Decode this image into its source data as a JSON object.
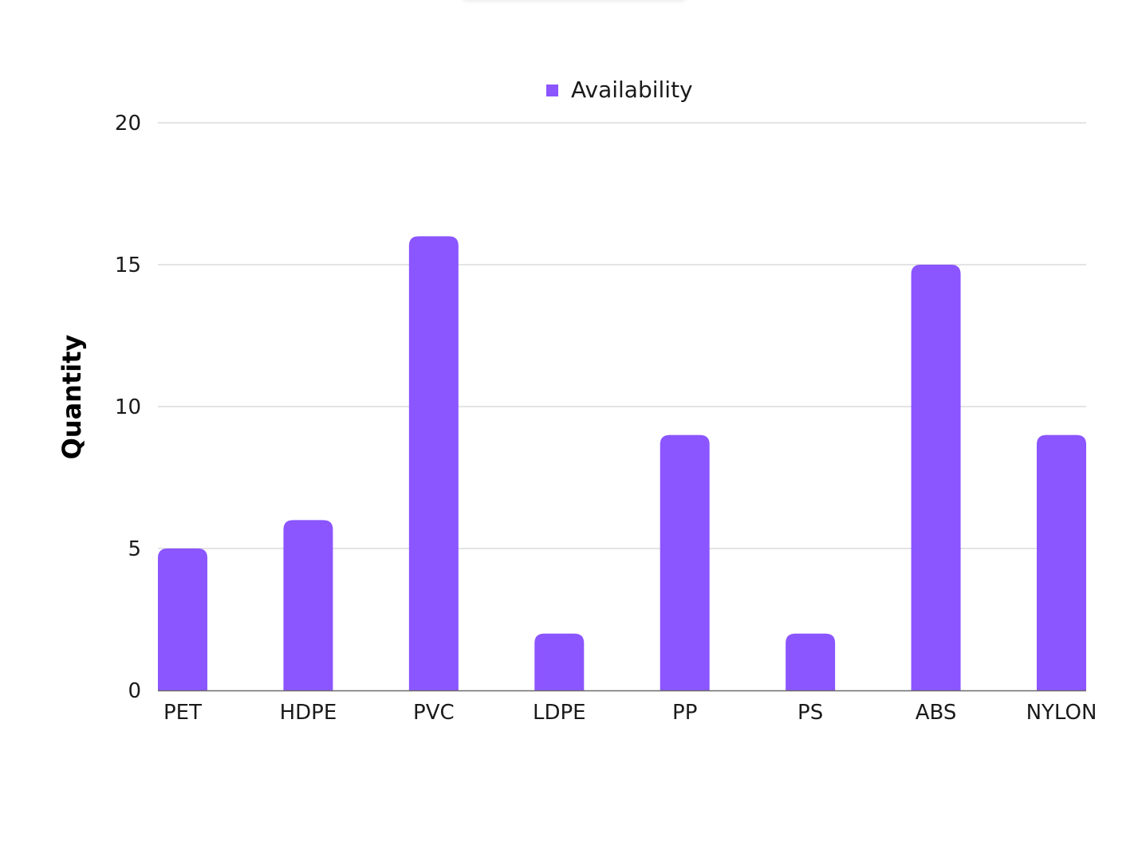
{
  "chart_data": {
    "type": "bar",
    "title": "",
    "xlabel": "",
    "ylabel": "Quantity",
    "categories": [
      "PET",
      "HDPE",
      "PVC",
      "LDPE",
      "PP",
      "PS",
      "ABS",
      "NYLON"
    ],
    "series": [
      {
        "name": "Availability",
        "color": "#8b55ff",
        "values": [
          5,
          6,
          16,
          2,
          9,
          2,
          15,
          9
        ]
      }
    ],
    "ylim": [
      0,
      20
    ],
    "yticks": [
      0,
      5,
      10,
      15,
      20
    ],
    "grid": true,
    "legend": "top-center"
  }
}
